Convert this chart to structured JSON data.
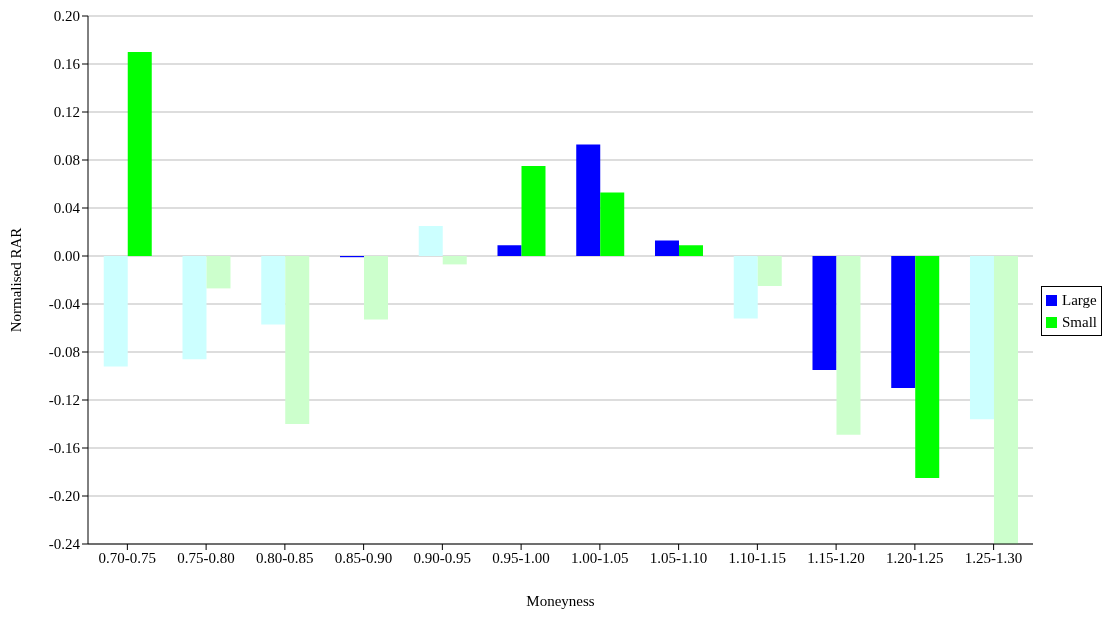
{
  "chart_data": {
    "type": "bar",
    "xlabel": "Moneyness",
    "ylabel": "Normalised RAR",
    "categories": [
      "0.70-0.75",
      "0.75-0.80",
      "0.80-0.85",
      "0.85-0.90",
      "0.90-0.95",
      "0.95-1.00",
      "1.00-1.05",
      "1.05-1.10",
      "1.10-1.15",
      "1.15-1.20",
      "1.20-1.25",
      "1.25-1.30"
    ],
    "series": [
      {
        "name": "Large",
        "color": "#0000ff",
        "colors": [
          "#ccffff",
          "#ccffff",
          "#ccffff",
          "#0000ff",
          "#ccffff",
          "#0000ff",
          "#0000ff",
          "#0000ff",
          "#ccffff",
          "#0000ff",
          "#0000ff",
          "#ccffff"
        ],
        "values": [
          -0.092,
          -0.086,
          -0.057,
          -0.001,
          0.025,
          0.009,
          0.093,
          0.013,
          -0.052,
          -0.095,
          -0.11,
          -0.136
        ]
      },
      {
        "name": "Small",
        "color": "#00ff00",
        "colors": [
          "#00ff00",
          "#ccffcc",
          "#ccffcc",
          "#ccffcc",
          "#ccffcc",
          "#00ff00",
          "#00ff00",
          "#00ff00",
          "#ccffcc",
          "#ccffcc",
          "#00ff00",
          "#ccffcc"
        ],
        "values": [
          0.17,
          -0.027,
          -0.14,
          -0.053,
          -0.007,
          0.075,
          0.053,
          0.009,
          -0.025,
          -0.149,
          -0.185,
          -0.24
        ]
      }
    ],
    "ylim": [
      -0.24,
      0.2
    ],
    "yticks": [
      {
        "value": -0.24,
        "label": "-0.24"
      },
      {
        "value": -0.2,
        "label": "-0.20"
      },
      {
        "value": -0.16,
        "label": "-0.16"
      },
      {
        "value": -0.12,
        "label": "-0.12"
      },
      {
        "value": -0.08,
        "label": "-0.08"
      },
      {
        "value": -0.04,
        "label": "-0.04"
      },
      {
        "value": 0,
        "label": "0.00"
      },
      {
        "value": 0.04,
        "label": "0.04"
      },
      {
        "value": 0.08,
        "label": "0.08"
      },
      {
        "value": 0.12,
        "label": "0.12"
      },
      {
        "value": 0.16,
        "label": "0.16"
      },
      {
        "value": 0.2,
        "label": "0.20"
      }
    ],
    "grid": "y",
    "legend": "right"
  }
}
